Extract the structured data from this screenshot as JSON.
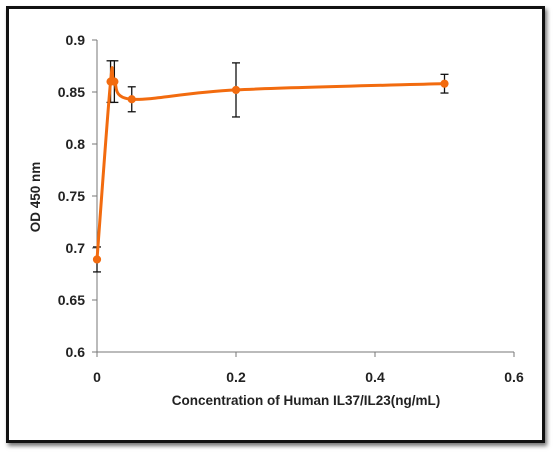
{
  "chart_data": {
    "type": "line",
    "title": "",
    "xlabel": "Concentration of Human IL37/IL23(ng/mL)",
    "ylabel": "OD 450 nm",
    "xlim": [
      0,
      0.6
    ],
    "ylim": [
      0.6,
      0.9
    ],
    "x_ticks": [
      "0",
      "0.2",
      "0.4",
      "0.6"
    ],
    "y_ticks": [
      "0.6",
      "0.65",
      "0.7",
      "0.75",
      "0.8",
      "0.85",
      "0.9"
    ],
    "grid": false,
    "legend": "none",
    "smooth": true,
    "color": "#F26B0F",
    "series": [
      {
        "x": [
          0,
          0.0195,
          0.025,
          0.05,
          0.2,
          0.5
        ],
        "y": [
          0.689,
          0.86,
          0.86,
          0.843,
          0.852,
          0.858
        ],
        "error": [
          0.012,
          0.02,
          0.02,
          0.012,
          0.026,
          0.009
        ]
      }
    ]
  }
}
